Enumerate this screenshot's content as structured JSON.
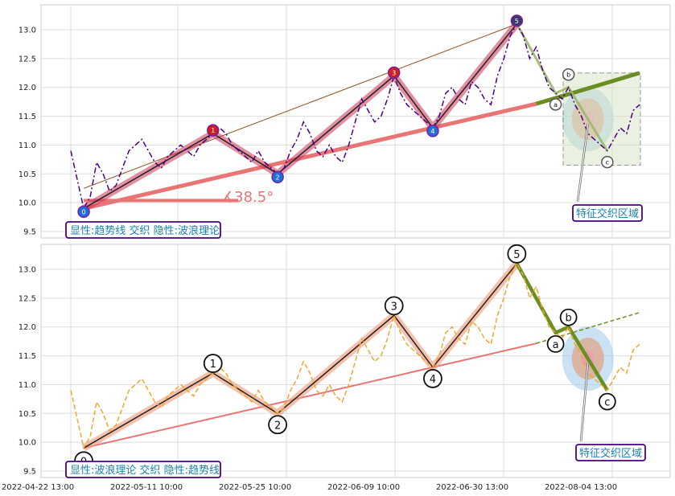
{
  "chart_data": [
    {
      "type": "line",
      "panel": "top",
      "ylim": [
        9.4,
        13.4
      ],
      "yticks": [
        "9.5",
        "10.0",
        "10.5",
        "11.0",
        "11.5",
        "12.0",
        "12.5",
        "13.0"
      ],
      "grid": true,
      "series": [
        {
          "values": [
            10.9,
            10.4,
            9.9,
            10.1,
            10.7,
            10.5,
            10.2,
            10.3,
            10.6,
            10.9,
            11.0,
            11.1,
            10.9,
            10.7,
            10.6,
            10.8,
            10.9,
            11.0,
            10.9,
            10.8,
            11.0,
            11.1,
            11.2,
            11.3,
            11.2,
            11.0,
            10.9,
            10.8,
            10.7,
            10.9,
            10.7,
            10.6,
            10.5,
            10.6,
            10.9,
            11.1,
            11.4,
            11.2,
            10.9,
            10.8,
            11.0,
            10.8,
            10.7,
            11.0,
            11.4,
            11.8,
            11.6,
            11.4,
            11.5,
            11.8,
            12.2,
            11.9,
            11.7,
            11.6,
            11.5,
            11.4,
            11.3,
            11.5,
            11.9,
            12.0,
            11.8,
            11.7,
            12.1,
            12.0,
            11.8,
            11.7,
            12.2,
            12.5,
            12.9,
            13.1,
            12.9,
            12.5,
            12.7,
            12.3,
            12.0,
            11.9,
            11.8,
            12.0,
            11.7,
            11.5,
            11.2,
            11.1,
            11.0,
            10.9,
            11.1,
            11.3,
            11.2,
            11.6,
            11.7
          ]
        }
      ],
      "wave_labels": [
        "0",
        "1",
        "2",
        "3",
        "4",
        "5",
        "a",
        "b",
        "c"
      ],
      "angle_label": "∡38.5°",
      "annotation": "特征交织区域",
      "legend_text": "显性:趋势线 交织 隐性:波浪理论"
    },
    {
      "type": "line",
      "panel": "bottom",
      "ylim": [
        9.4,
        13.4
      ],
      "yticks": [
        "9.5",
        "10.0",
        "10.5",
        "11.0",
        "11.5",
        "12.0",
        "12.5",
        "13.0"
      ],
      "xticks": [
        "2022-04-22 13:00",
        "2022-05-11 10:00",
        "2022-05-25 10:00",
        "2022-06-09 10:00",
        "2022-06-30 13:00",
        "2022-08-04 13:00"
      ],
      "grid": true,
      "series": [
        {
          "values": [
            10.9,
            10.4,
            9.9,
            10.1,
            10.7,
            10.5,
            10.2,
            10.3,
            10.6,
            10.9,
            11.0,
            11.1,
            10.9,
            10.7,
            10.6,
            10.8,
            10.9,
            11.0,
            10.9,
            10.8,
            11.0,
            11.1,
            11.2,
            11.3,
            11.2,
            11.0,
            10.9,
            10.8,
            10.7,
            10.9,
            10.7,
            10.6,
            10.5,
            10.6,
            10.9,
            11.1,
            11.4,
            11.2,
            10.9,
            10.8,
            11.0,
            10.8,
            10.7,
            11.0,
            11.4,
            11.8,
            11.6,
            11.4,
            11.5,
            11.8,
            12.2,
            11.9,
            11.7,
            11.6,
            11.5,
            11.4,
            11.3,
            11.5,
            11.9,
            12.0,
            11.8,
            11.7,
            12.1,
            12.0,
            11.8,
            11.7,
            12.2,
            12.5,
            12.9,
            13.1,
            12.9,
            12.5,
            12.7,
            12.3,
            12.0,
            11.9,
            11.8,
            12.0,
            11.7,
            11.5,
            11.2,
            11.1,
            11.0,
            10.9,
            11.1,
            11.3,
            11.2,
            11.6,
            11.7
          ]
        }
      ],
      "wave_labels": [
        "0",
        "1",
        "2",
        "3",
        "4",
        "5",
        "a",
        "b",
        "c"
      ],
      "annotation": "特征交织区域",
      "legend_text": "显性:波浪理论 交织 隐性:趋势线"
    }
  ]
}
